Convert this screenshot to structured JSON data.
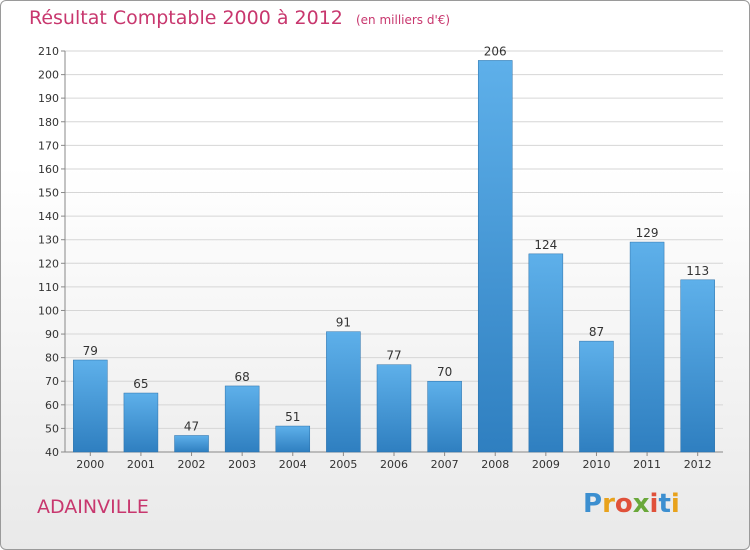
{
  "chart_data": {
    "type": "bar",
    "title": "Résultat Comptable 2000 à 2012",
    "subtitle": "(en milliers d'€)",
    "categories": [
      "2000",
      "2001",
      "2002",
      "2003",
      "2004",
      "2005",
      "2006",
      "2007",
      "2008",
      "2009",
      "2010",
      "2011",
      "2012"
    ],
    "values": [
      79,
      65,
      47,
      68,
      51,
      91,
      77,
      70,
      206,
      124,
      87,
      129,
      113
    ],
    "ylim": [
      40,
      210
    ],
    "yticks": [
      40,
      50,
      60,
      70,
      80,
      90,
      100,
      110,
      120,
      130,
      140,
      150,
      160,
      170,
      180,
      190,
      200,
      210
    ],
    "xlabel": "",
    "ylabel": "",
    "grid": true,
    "bar_color": "#3e95d8",
    "title_color": "#c8376e"
  },
  "commune": "ADAINVILLE",
  "logo": {
    "letters": [
      "P",
      "r",
      "o",
      "x",
      "i",
      "t",
      "i"
    ],
    "colors": [
      "#3c8fd0",
      "#e8a21c",
      "#e0513a",
      "#6aa83a",
      "#e0513a",
      "#3c8fd0",
      "#e8a21c"
    ]
  }
}
